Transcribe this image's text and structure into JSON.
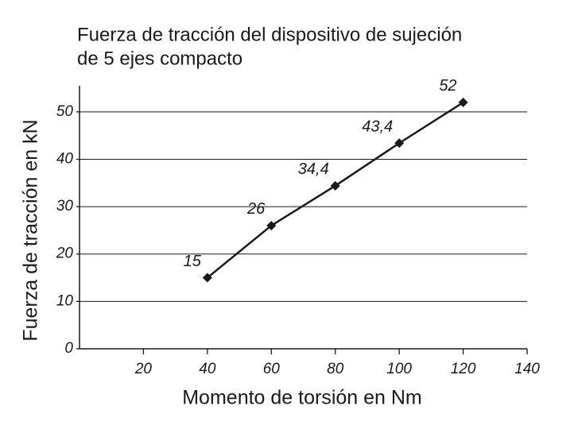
{
  "chart_data": {
    "type": "line",
    "title": [
      "Fuerza de tracción del dispositivo de sujeción",
      "de 5 ejes compacto"
    ],
    "x_label": "Momento de torsión en Nm",
    "y_label": "Fuerza de tracción en kN",
    "x": [
      40,
      60,
      80,
      100,
      120
    ],
    "series": [
      {
        "name": "Fuerza de tracción",
        "color": "#1a1a1a",
        "values": [
          15,
          26,
          34.4,
          43.4,
          52
        ],
        "value_labels": [
          "15",
          "26",
          "34,4",
          "43,4",
          "52"
        ]
      }
    ],
    "xlim": [
      0,
      140
    ],
    "xticks": [
      20,
      40,
      60,
      80,
      100,
      120,
      140
    ],
    "ylim": [
      0,
      55
    ],
    "yticks": [
      0,
      10,
      20,
      30,
      40,
      50
    ],
    "grid": true
  }
}
